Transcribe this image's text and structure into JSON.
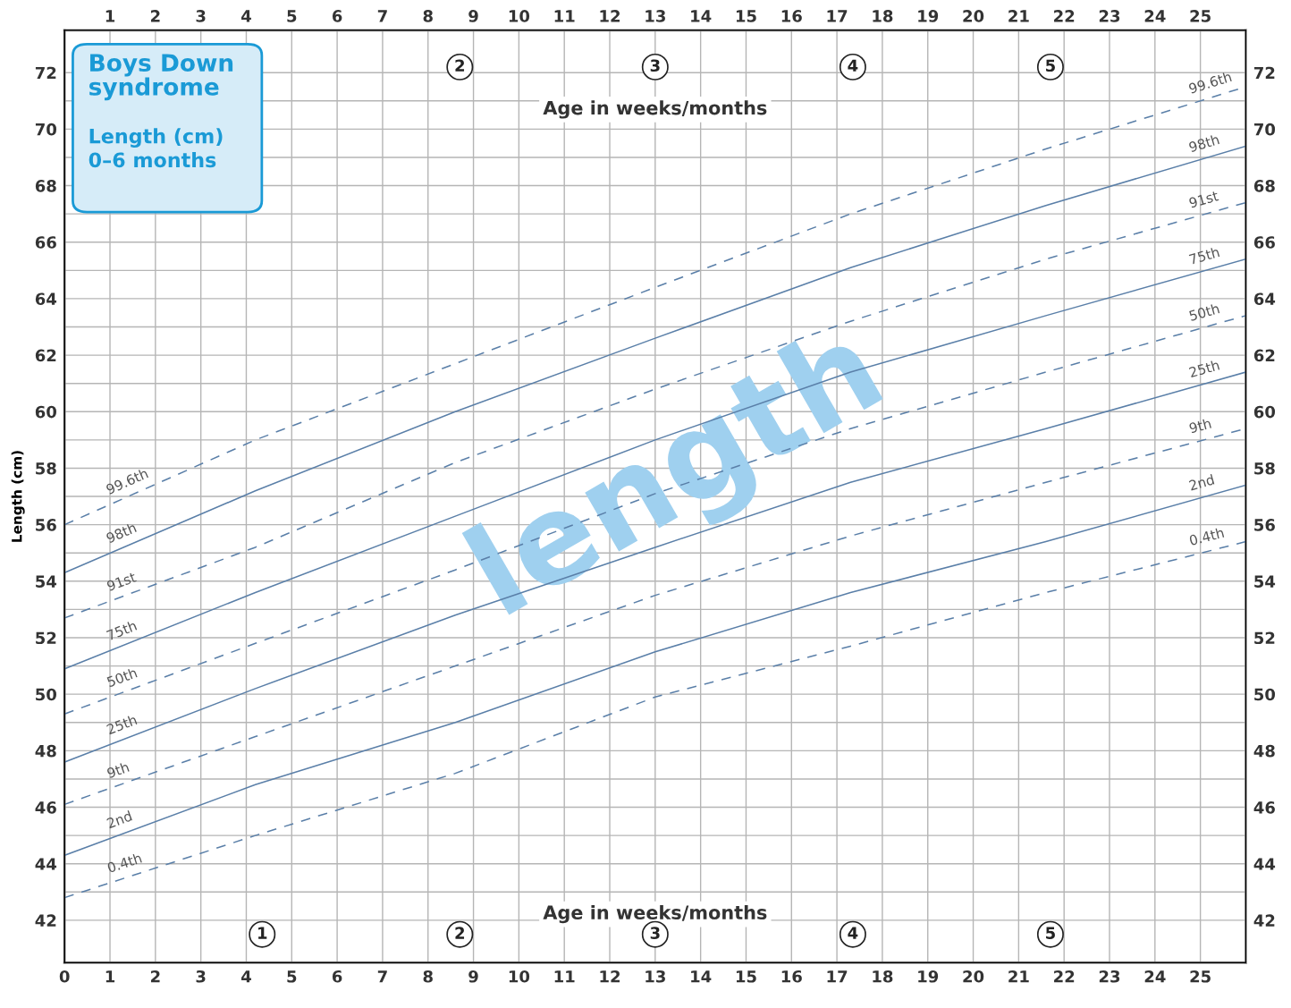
{
  "chart_data": {
    "type": "line",
    "title": "Boys Down\nsyndrome",
    "subtitle": "Length (cm)\n0–6 months",
    "ylabel": "Length (cm)",
    "x": [
      0,
      4.2,
      8.6,
      13,
      17.3,
      21.6,
      26
    ],
    "series": [
      {
        "name": "99.6th",
        "color": "#5a7fa8",
        "line_style": "dashed",
        "values": [
          56.0,
          59.0,
          61.7,
          64.4,
          67.0,
          69.3,
          71.5
        ]
      },
      {
        "name": "98th",
        "color": "#5a7fa8",
        "line_style": "solid",
        "values": [
          54.3,
          57.2,
          60.0,
          62.6,
          65.1,
          67.3,
          69.4
        ]
      },
      {
        "name": "91st",
        "color": "#5a7fa8",
        "line_style": "dashed",
        "values": [
          52.7,
          55.2,
          58.2,
          60.8,
          63.2,
          65.4,
          67.4
        ]
      },
      {
        "name": "75th",
        "color": "#5a7fa8",
        "line_style": "solid",
        "values": [
          50.9,
          53.6,
          56.3,
          59.0,
          61.4,
          63.4,
          65.4
        ]
      },
      {
        "name": "50th",
        "color": "#5a7fa8",
        "line_style": "dashed",
        "values": [
          49.3,
          51.8,
          54.4,
          57.1,
          59.4,
          61.4,
          63.4
        ]
      },
      {
        "name": "25th",
        "color": "#5a7fa8",
        "line_style": "solid",
        "values": [
          47.6,
          50.2,
          52.8,
          55.2,
          57.5,
          59.4,
          61.4
        ]
      },
      {
        "name": "9th",
        "color": "#5a7fa8",
        "line_style": "dashed",
        "values": [
          46.1,
          48.5,
          51.0,
          53.5,
          55.6,
          57.5,
          59.4
        ]
      },
      {
        "name": "2nd",
        "color": "#5a7fa8",
        "line_style": "solid",
        "values": [
          44.3,
          46.8,
          49.0,
          51.5,
          53.6,
          55.4,
          57.4
        ]
      },
      {
        "name": "0.4th",
        "color": "#5a7fa8",
        "line_style": "dashed",
        "values": [
          42.8,
          45.0,
          47.2,
          49.9,
          51.7,
          53.6,
          55.4
        ]
      }
    ],
    "xlim": [
      0,
      26
    ],
    "ylim": [
      40.5,
      73.5
    ],
    "xticks": [
      0,
      1,
      2,
      3,
      4,
      5,
      6,
      7,
      8,
      9,
      10,
      11,
      12,
      13,
      14,
      15,
      16,
      17,
      18,
      19,
      20,
      21,
      22,
      23,
      24,
      25
    ],
    "x2lim": [
      0,
      26
    ],
    "x2ticks": [
      1,
      2,
      3,
      4,
      5,
      6,
      7,
      8,
      9,
      10,
      11,
      12,
      13,
      14,
      15,
      16,
      17,
      18,
      19,
      20,
      21,
      22,
      23,
      24,
      25
    ],
    "yticks": [
      42,
      {
        "value": 43,
        "label": null
      },
      44,
      {
        "value": 45,
        "label": null
      },
      46,
      {
        "value": 47,
        "label": null
      },
      48,
      {
        "value": 49,
        "label": null
      },
      50,
      {
        "value": 51,
        "label": null
      },
      52,
      {
        "value": 53,
        "label": null
      },
      54,
      {
        "value": 55,
        "label": null
      },
      56,
      {
        "value": 57,
        "label": null
      },
      58,
      {
        "value": 59,
        "label": null
      },
      60,
      {
        "value": 61,
        "label": null
      },
      62,
      {
        "value": 63,
        "label": null
      },
      64,
      {
        "value": 65,
        "label": null
      },
      66,
      {
        "value": 67,
        "label": null
      },
      68,
      {
        "value": 69,
        "label": null
      },
      70,
      {
        "value": 71,
        "label": null
      },
      72
    ],
    "y2lim": [
      40.5,
      73.5
    ],
    "y2ticks": [
      42,
      44,
      46,
      48,
      50,
      52,
      54,
      56,
      58,
      60,
      62,
      64,
      66,
      68,
      70,
      72
    ],
    "grid": true,
    "legend": false,
    "marker": "none",
    "annotations": [
      "Age in weeks/months",
      "Age in weeks/months",
      "length",
      {
        "text": "1",
        "x": 4.35,
        "y": 41.5
      },
      {
        "text": "2",
        "x": 8.7,
        "y": 41.5
      },
      {
        "text": "3",
        "x": 13.0,
        "y": 41.5
      },
      {
        "text": "4",
        "x": 17.35,
        "y": 41.5
      },
      {
        "text": "5",
        "x": 21.7,
        "y": 41.5
      },
      {
        "text": "2",
        "x": 8.7,
        "y": 72.2
      },
      {
        "text": "3",
        "x": 13.0,
        "y": 72.2
      },
      {
        "text": "4",
        "x": 17.35,
        "y": 72.2
      },
      {
        "text": "5",
        "x": 21.7,
        "y": 72.2
      }
    ]
  }
}
